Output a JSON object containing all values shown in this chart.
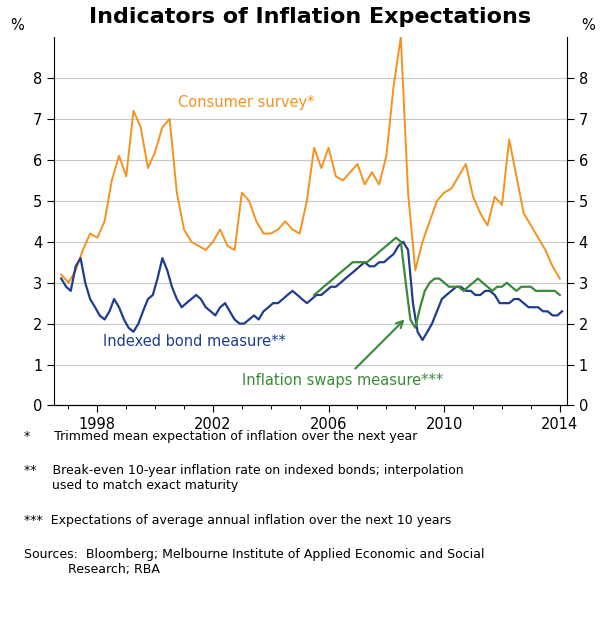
{
  "title": "Indicators of Inflation Expectations",
  "title_fontsize": 16,
  "ylabel_left": "%",
  "ylabel_right": "%",
  "ylim": [
    0,
    9
  ],
  "yticks": [
    0,
    1,
    2,
    3,
    4,
    5,
    6,
    7,
    8
  ],
  "xlim_start": 1996.5,
  "xlim_end": 2014.25,
  "xticks": [
    1998,
    2002,
    2006,
    2010,
    2014
  ],
  "background_color": "#ffffff",
  "grid_color": "#c8c8c8",
  "consumer_color": "#f5921e",
  "bond_color": "#1f3d8c",
  "swaps_color": "#3a8a3a",
  "label_consumer": "Consumer survey*",
  "label_bond": "Indexed bond measure**",
  "label_swaps": "Inflation swaps measure***",
  "consumer_x": [
    1996.75,
    1997.0,
    1997.25,
    1997.5,
    1997.75,
    1998.0,
    1998.25,
    1998.5,
    1998.75,
    1999.0,
    1999.25,
    1999.5,
    1999.75,
    2000.0,
    2000.25,
    2000.5,
    2000.75,
    2001.0,
    2001.25,
    2001.5,
    2001.75,
    2002.0,
    2002.25,
    2002.5,
    2002.75,
    2003.0,
    2003.25,
    2003.5,
    2003.75,
    2004.0,
    2004.25,
    2004.5,
    2004.75,
    2005.0,
    2005.25,
    2005.5,
    2005.75,
    2006.0,
    2006.25,
    2006.5,
    2006.75,
    2007.0,
    2007.25,
    2007.5,
    2007.75,
    2008.0,
    2008.25,
    2008.5,
    2008.75,
    2009.0,
    2009.25,
    2009.5,
    2009.75,
    2010.0,
    2010.25,
    2010.5,
    2010.75,
    2011.0,
    2011.25,
    2011.5,
    2011.75,
    2012.0,
    2012.25,
    2012.5,
    2012.75,
    2013.0,
    2013.25,
    2013.5,
    2013.75,
    2014.0
  ],
  "consumer_y": [
    3.2,
    3.0,
    3.3,
    3.8,
    4.2,
    4.1,
    4.5,
    5.5,
    6.1,
    5.6,
    7.2,
    6.8,
    5.8,
    6.2,
    6.8,
    7.0,
    5.2,
    4.3,
    4.0,
    3.9,
    3.8,
    4.0,
    4.3,
    3.9,
    3.8,
    5.2,
    5.0,
    4.5,
    4.2,
    4.2,
    4.3,
    4.5,
    4.3,
    4.2,
    5.0,
    6.3,
    5.8,
    6.3,
    5.6,
    5.5,
    5.7,
    5.9,
    5.4,
    5.7,
    5.4,
    6.1,
    7.8,
    9.0,
    5.2,
    3.3,
    4.0,
    4.5,
    5.0,
    5.2,
    5.3,
    5.6,
    5.9,
    5.1,
    4.7,
    4.4,
    5.1,
    4.9,
    6.5,
    5.6,
    4.7,
    4.4,
    4.1,
    3.8,
    3.4,
    3.1
  ],
  "bond_x": [
    1996.75,
    1996.92,
    1997.08,
    1997.25,
    1997.42,
    1997.58,
    1997.75,
    1997.92,
    1998.08,
    1998.25,
    1998.42,
    1998.58,
    1998.75,
    1998.92,
    1999.08,
    1999.25,
    1999.42,
    1999.58,
    1999.75,
    1999.92,
    2000.08,
    2000.25,
    2000.42,
    2000.58,
    2000.75,
    2000.92,
    2001.08,
    2001.25,
    2001.42,
    2001.58,
    2001.75,
    2001.92,
    2002.08,
    2002.25,
    2002.42,
    2002.58,
    2002.75,
    2002.92,
    2003.08,
    2003.25,
    2003.42,
    2003.58,
    2003.75,
    2003.92,
    2004.08,
    2004.25,
    2004.42,
    2004.58,
    2004.75,
    2004.92,
    2005.08,
    2005.25,
    2005.42,
    2005.58,
    2005.75,
    2005.92,
    2006.08,
    2006.25,
    2006.42,
    2006.58,
    2006.75,
    2006.92,
    2007.08,
    2007.25,
    2007.42,
    2007.58,
    2007.75,
    2007.92,
    2008.08,
    2008.25,
    2008.42,
    2008.58,
    2008.75,
    2008.92,
    2009.08,
    2009.25,
    2009.42,
    2009.58,
    2009.75,
    2009.92,
    2010.08,
    2010.25,
    2010.42,
    2010.58,
    2010.75,
    2010.92,
    2011.08,
    2011.25,
    2011.42,
    2011.58,
    2011.75,
    2011.92,
    2012.08,
    2012.25,
    2012.42,
    2012.58,
    2012.75,
    2012.92,
    2013.08,
    2013.25,
    2013.42,
    2013.58,
    2013.75,
    2013.92,
    2014.08
  ],
  "bond_y": [
    3.1,
    2.9,
    2.8,
    3.4,
    3.6,
    3.0,
    2.6,
    2.4,
    2.2,
    2.1,
    2.3,
    2.6,
    2.4,
    2.1,
    1.9,
    1.8,
    2.0,
    2.3,
    2.6,
    2.7,
    3.1,
    3.6,
    3.3,
    2.9,
    2.6,
    2.4,
    2.5,
    2.6,
    2.7,
    2.6,
    2.4,
    2.3,
    2.2,
    2.4,
    2.5,
    2.3,
    2.1,
    2.0,
    2.0,
    2.1,
    2.2,
    2.1,
    2.3,
    2.4,
    2.5,
    2.5,
    2.6,
    2.7,
    2.8,
    2.7,
    2.6,
    2.5,
    2.6,
    2.7,
    2.7,
    2.8,
    2.9,
    2.9,
    3.0,
    3.1,
    3.2,
    3.3,
    3.4,
    3.5,
    3.4,
    3.4,
    3.5,
    3.5,
    3.6,
    3.7,
    3.9,
    4.0,
    3.8,
    2.5,
    1.8,
    1.6,
    1.8,
    2.0,
    2.3,
    2.6,
    2.7,
    2.8,
    2.9,
    2.9,
    2.8,
    2.8,
    2.7,
    2.7,
    2.8,
    2.8,
    2.7,
    2.5,
    2.5,
    2.5,
    2.6,
    2.6,
    2.5,
    2.4,
    2.4,
    2.4,
    2.3,
    2.3,
    2.2,
    2.2,
    2.3
  ],
  "swaps_x": [
    2005.5,
    2005.67,
    2005.83,
    2006.0,
    2006.17,
    2006.33,
    2006.5,
    2006.67,
    2006.83,
    2007.0,
    2007.17,
    2007.33,
    2007.5,
    2007.67,
    2007.83,
    2008.0,
    2008.17,
    2008.33,
    2008.5,
    2008.67,
    2008.83,
    2009.0,
    2009.17,
    2009.33,
    2009.5,
    2009.67,
    2009.83,
    2010.0,
    2010.17,
    2010.33,
    2010.5,
    2010.67,
    2010.83,
    2011.0,
    2011.17,
    2011.33,
    2011.5,
    2011.67,
    2011.83,
    2012.0,
    2012.17,
    2012.33,
    2012.5,
    2012.67,
    2012.83,
    2013.0,
    2013.17,
    2013.33,
    2013.5,
    2013.67,
    2013.83,
    2014.0
  ],
  "swaps_y": [
    2.7,
    2.8,
    2.9,
    3.0,
    3.1,
    3.2,
    3.3,
    3.4,
    3.5,
    3.5,
    3.5,
    3.5,
    3.6,
    3.7,
    3.8,
    3.9,
    4.0,
    4.1,
    4.0,
    3.0,
    2.1,
    1.9,
    2.4,
    2.8,
    3.0,
    3.1,
    3.1,
    3.0,
    2.9,
    2.9,
    2.9,
    2.8,
    2.9,
    3.0,
    3.1,
    3.0,
    2.9,
    2.8,
    2.9,
    2.9,
    3.0,
    2.9,
    2.8,
    2.9,
    2.9,
    2.9,
    2.8,
    2.8,
    2.8,
    2.8,
    2.8,
    2.7
  ]
}
